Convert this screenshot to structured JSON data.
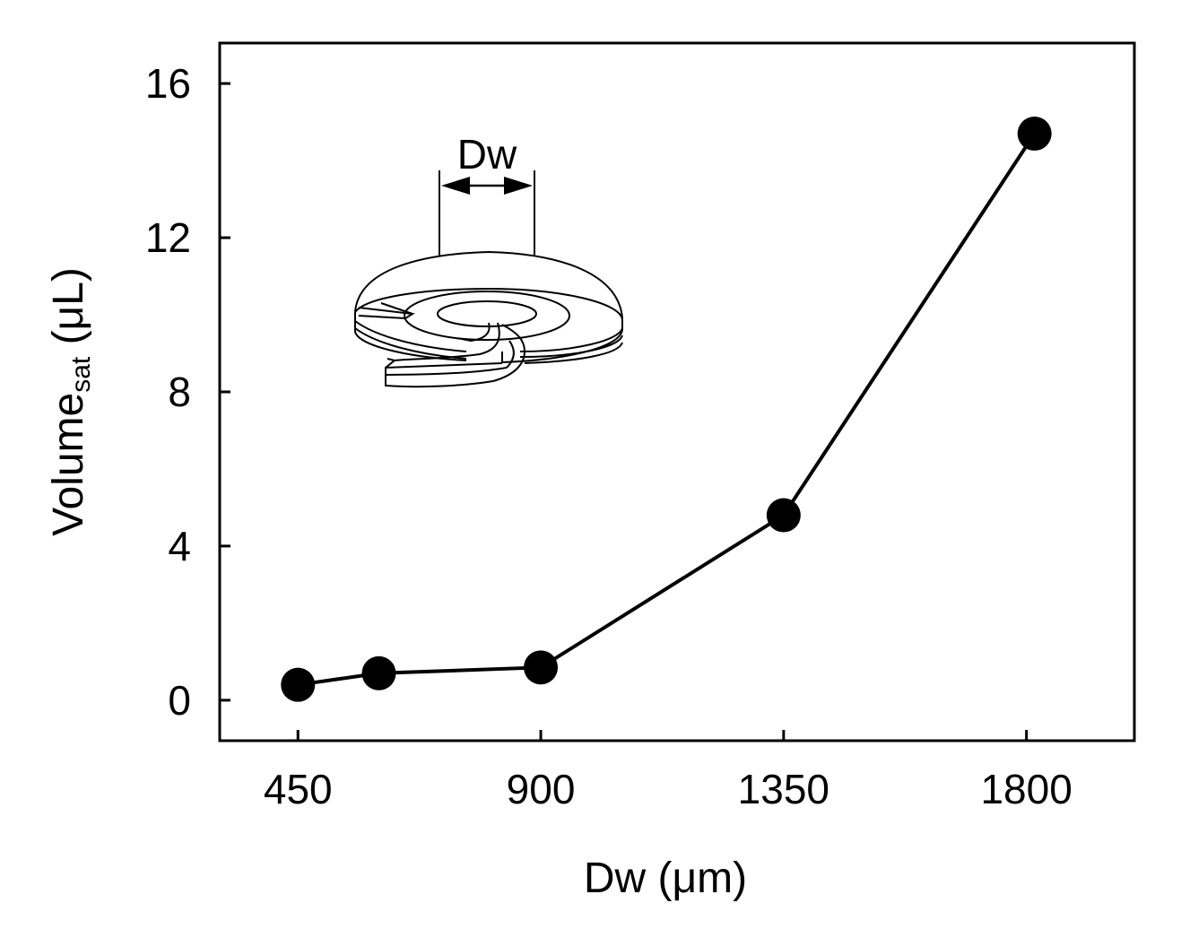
{
  "chart_data": {
    "type": "line",
    "title": "",
    "xlabel": "Dw (μm)",
    "ylabel": {
      "main": "Volume",
      "subscript": "sat",
      "unit": " (μL)"
    },
    "x_ticks": [
      450,
      900,
      1350,
      1800
    ],
    "y_ticks": [
      0,
      4,
      8,
      12,
      16
    ],
    "xlim": [
      305,
      2000
    ],
    "ylim": [
      -1.05,
      17.05
    ],
    "grid": false,
    "legend": "none",
    "series": [
      {
        "x": [
          450,
          600,
          900,
          1350,
          1815
        ],
        "y": [
          0.4,
          0.7,
          0.85,
          4.8,
          14.7
        ],
        "color": "#000000",
        "marker": "filled-circle"
      }
    ],
    "inset": {
      "label": "Dw",
      "description_icon": "annular-disc-device-icon"
    }
  }
}
